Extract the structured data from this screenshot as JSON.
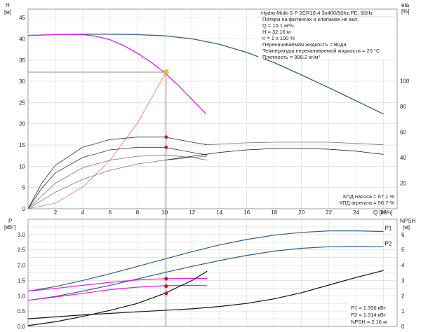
{
  "chart_data": [
    {
      "type": "line",
      "panel": "top",
      "y_left_label": "H",
      "y_left_unit": "[м]",
      "y_right_label": "eta",
      "y_right_unit": "[%]",
      "x_label": "Q [м³/ч]",
      "xlim": [
        0,
        27
      ],
      "ylim": [
        0,
        47
      ],
      "y_right_lim": [
        0,
        156
      ],
      "x_ticks": [
        2,
        4,
        6,
        8,
        10,
        12,
        14,
        16,
        18,
        20,
        22,
        24,
        26
      ],
      "y_ticks": [
        0,
        5,
        10,
        15,
        20,
        25,
        30,
        35,
        40,
        45
      ],
      "y_right_ticks": [
        20,
        40,
        60,
        80,
        100
      ],
      "grid": true,
      "info_lines": [
        "Hydro Multi-S P 2CR10-4 3x400/50hz,PE, 50Hz",
        "Потери на фитингах и клапанах не вкл.",
        "Q = 10.1 м³/ч",
        "H = 32.16 м",
        "n = 1 x 100 %",
        "Перекачиваемая жидкость = Вода",
        "Температура перекачиваемой жидкости = 20 °C",
        "Плотность = 998.2 кг/м³"
      ],
      "bottom_notes": [
        "КПД насоса = 67.1 %",
        "КПД агрегата = 56.7 %"
      ],
      "series": [
        {
          "axis": "left",
          "color": "#2c5f8f",
          "x": [
            0,
            2,
            4,
            6,
            8,
            10,
            12,
            14,
            16,
            18,
            20,
            22,
            24,
            26
          ],
          "y": [
            40.8,
            41.0,
            41.1,
            41.1,
            41.0,
            40.7,
            40.0,
            38.7,
            36.8,
            34.4,
            31.5,
            28.5,
            25.4,
            22.3
          ]
        },
        {
          "axis": "left",
          "color": "#e020e0",
          "x": [
            0,
            2,
            4,
            5,
            6,
            7,
            8,
            9,
            10,
            11,
            12,
            13
          ],
          "y": [
            40.8,
            41.0,
            41.0,
            40.6,
            39.8,
            38.4,
            36.6,
            34.5,
            32.0,
            29.0,
            25.7,
            22.4
          ]
        },
        {
          "axis": "left",
          "color": "#f07060",
          "x": [
            0,
            2,
            4,
            6,
            8,
            10.1
          ],
          "y": [
            0,
            1.3,
            5.1,
            11.4,
            20.2,
            32.16
          ]
        },
        {
          "axis": "right",
          "color": "#333333",
          "x": [
            0,
            1,
            2,
            4,
            6,
            8,
            10,
            12,
            13.1
          ],
          "y": [
            0,
            20,
            34,
            48,
            54,
            56,
            56,
            52,
            50
          ]
        },
        {
          "axis": "right",
          "color": "#333333",
          "x": [
            0,
            1,
            2,
            4,
            6,
            8,
            10,
            12,
            13.1
          ],
          "y": [
            0,
            16,
            28,
            40,
            46,
            48,
            48,
            44,
            42
          ]
        },
        {
          "axis": "right",
          "color": "#777777",
          "x": [
            0,
            2,
            4,
            6,
            8,
            10,
            12,
            13.1
          ],
          "y": [
            0,
            20,
            32,
            38,
            41,
            42,
            40,
            38
          ]
        },
        {
          "axis": "right",
          "color": "#777777",
          "x": [
            0,
            2,
            4,
            6,
            8,
            10,
            12,
            13.1
          ],
          "y": [
            0,
            13,
            23,
            30,
            35,
            38,
            40,
            41
          ]
        },
        {
          "axis": "right",
          "color": "#777777",
          "x": [
            13.1,
            16,
            18,
            20,
            22,
            24,
            26
          ],
          "y": [
            50,
            51.5,
            52,
            52,
            52,
            51,
            50
          ]
        },
        {
          "axis": "right",
          "color": "#111111",
          "x": [
            10,
            12,
            14,
            16,
            18,
            20,
            22,
            24,
            26
          ],
          "y": [
            38,
            41,
            44,
            46,
            47,
            47,
            46.5,
            45,
            42.5
          ]
        }
      ],
      "operating_point": {
        "x": 10.1,
        "y": 32.16
      }
    },
    {
      "type": "line",
      "panel": "bottom",
      "y_left_label": "P",
      "y_left_unit": "[кВт]",
      "y_right_label": "NPSH",
      "y_right_unit": "[м]",
      "xlim": [
        0,
        27
      ],
      "ylim": [
        0,
        3.5
      ],
      "y_right_lim": [
        0,
        7
      ],
      "y_ticks": [
        0.0,
        0.25,
        0.5,
        0.75,
        1.0,
        1.25,
        1.5,
        1.75,
        2.0,
        2.25,
        2.5,
        2.75,
        3.0,
        3.25
      ],
      "y_tick_labels": [
        "0.0",
        "",
        "0.5",
        "",
        "1.0",
        "",
        "1.5",
        "",
        "2.0",
        "",
        "2.5",
        "",
        "3.0",
        ""
      ],
      "y_right_ticks": [
        0,
        1,
        2,
        3,
        4,
        5,
        6
      ],
      "grid": true,
      "bottom_notes": [
        "P1 = 1.556 кВт",
        "P2 = 1.314 кВт",
        "NPSH = 2.16 м"
      ],
      "series": [
        {
          "name": "P1",
          "axis": "left",
          "color": "#2c5f8f",
          "x": [
            0,
            2,
            4,
            6,
            8,
            10,
            12,
            14,
            16,
            18,
            20,
            22,
            24,
            26
          ],
          "y": [
            1.15,
            1.3,
            1.5,
            1.72,
            1.96,
            2.2,
            2.44,
            2.66,
            2.84,
            2.98,
            3.07,
            3.12,
            3.12,
            3.1
          ]
        },
        {
          "name": "P2",
          "axis": "left",
          "color": "#2c5f8f",
          "x": [
            0,
            2,
            4,
            6,
            8,
            10,
            12,
            14,
            16,
            18,
            20,
            22,
            24,
            26
          ],
          "y": [
            0.85,
            0.98,
            1.15,
            1.34,
            1.55,
            1.76,
            1.96,
            2.15,
            2.32,
            2.46,
            2.55,
            2.6,
            2.61,
            2.6
          ]
        },
        {
          "name": "",
          "axis": "left",
          "color": "#e020e0",
          "x": [
            0,
            2,
            4,
            6,
            8,
            10,
            12,
            13.1
          ],
          "y": [
            1.15,
            1.24,
            1.34,
            1.44,
            1.52,
            1.56,
            1.57,
            1.57
          ]
        },
        {
          "name": "",
          "axis": "left",
          "color": "#e020e0",
          "x": [
            0,
            2,
            4,
            6,
            8,
            10,
            12,
            13.1
          ],
          "y": [
            0.85,
            0.96,
            1.08,
            1.2,
            1.28,
            1.33,
            1.34,
            1.33
          ]
        },
        {
          "name": "",
          "axis": "right",
          "color": "#111111",
          "x": [
            0,
            2,
            4,
            6,
            8,
            10,
            12,
            13.1
          ],
          "y": [
            0.05,
            0.3,
            0.65,
            1.05,
            1.5,
            2.16,
            3.0,
            3.6
          ]
        },
        {
          "name": "",
          "axis": "right",
          "color": "#111111",
          "x": [
            0,
            4,
            8,
            12,
            14,
            16,
            18,
            20,
            22,
            24,
            26
          ],
          "y": [
            0.5,
            0.75,
            0.95,
            1.15,
            1.3,
            1.5,
            1.8,
            2.2,
            2.7,
            3.2,
            3.65
          ]
        }
      ],
      "operating_points": [
        {
          "x": 10.1,
          "y": 1.556
        },
        {
          "x": 10.1,
          "y": 1.314
        },
        {
          "x": 10.1,
          "y": 2.16,
          "axis": "right"
        }
      ]
    }
  ]
}
